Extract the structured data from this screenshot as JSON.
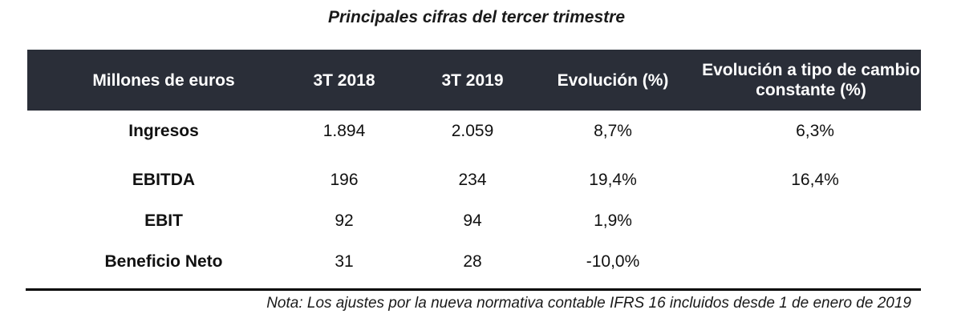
{
  "title": "Principales cifras del tercer trimestre",
  "table": {
    "headers": [
      "Millones de euros",
      "3T 2018",
      "3T 2019",
      "Evolución (%)",
      "Evolución a tipo de cambio constante (%)"
    ],
    "rows": [
      [
        "Ingresos",
        "1.894",
        "2.059",
        "8,7%",
        "6,3%"
      ],
      [
        "EBITDA",
        "196",
        "234",
        "19,4%",
        "16,4%"
      ],
      [
        "EBIT",
        "92",
        "94",
        "1,9%",
        ""
      ],
      [
        "Beneficio Neto",
        "31",
        "28",
        "-10,0%",
        ""
      ]
    ]
  },
  "note": "Nota: Los ajustes por la nueva normativa contable IFRS 16 incluidos desde 1 de enero de 2019",
  "colors": {
    "header_background": "#2a2e38",
    "header_text": "#ffffff"
  }
}
